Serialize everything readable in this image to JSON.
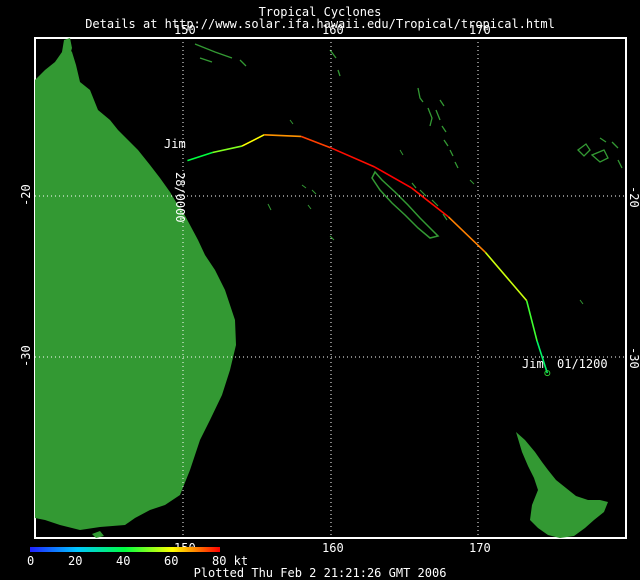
{
  "header": {
    "title": "Tropical Cyclones",
    "details": "Details at http://www.solar.ifa.hawaii.edu/Tropical/tropical.html"
  },
  "footer": {
    "plotted": "Plotted Thu Feb 2 21:21:26 GMT 2006"
  },
  "map": {
    "lon_range": [
      145,
      178
    ],
    "lat_range": [
      -42,
      -10
    ],
    "lon_ticks": [
      "150",
      "160",
      "170"
    ],
    "lat_ticks": [
      "-20",
      "-30"
    ],
    "land_color": "#339933",
    "background_color": "#000000",
    "grid": true,
    "grid_style": "dotted white"
  },
  "storm": {
    "name": "Jim",
    "start_label": "Jim",
    "start_time": "28/0000",
    "end_label": "Jim",
    "end_time": "01/1200",
    "track": [
      {
        "lon": 150.3,
        "lat": -17.8,
        "kt": 35
      },
      {
        "lon": 152.0,
        "lat": -17.3,
        "kt": 45
      },
      {
        "lon": 154.0,
        "lat": -16.9,
        "kt": 55
      },
      {
        "lon": 155.5,
        "lat": -16.2,
        "kt": 65
      },
      {
        "lon": 158.0,
        "lat": -16.3,
        "kt": 72
      },
      {
        "lon": 160.0,
        "lat": -17.0,
        "kt": 78
      },
      {
        "lon": 163.0,
        "lat": -18.2,
        "kt": 80
      },
      {
        "lon": 165.5,
        "lat": -19.5,
        "kt": 80
      },
      {
        "lon": 168.0,
        "lat": -21.3,
        "kt": 78
      },
      {
        "lon": 170.5,
        "lat": -23.5,
        "kt": 62
      },
      {
        "lon": 173.3,
        "lat": -26.5,
        "kt": 50
      },
      {
        "lon": 174.0,
        "lat": -29.0,
        "kt": 40
      },
      {
        "lon": 174.7,
        "lat": -31.0,
        "kt": 32
      }
    ]
  },
  "legend": {
    "ticks": [
      "0",
      "20",
      "40",
      "60",
      "80 kt"
    ],
    "colors": [
      "#0000ff",
      "#00ffff",
      "#00ff00",
      "#ffff00",
      "#ff0000"
    ]
  }
}
